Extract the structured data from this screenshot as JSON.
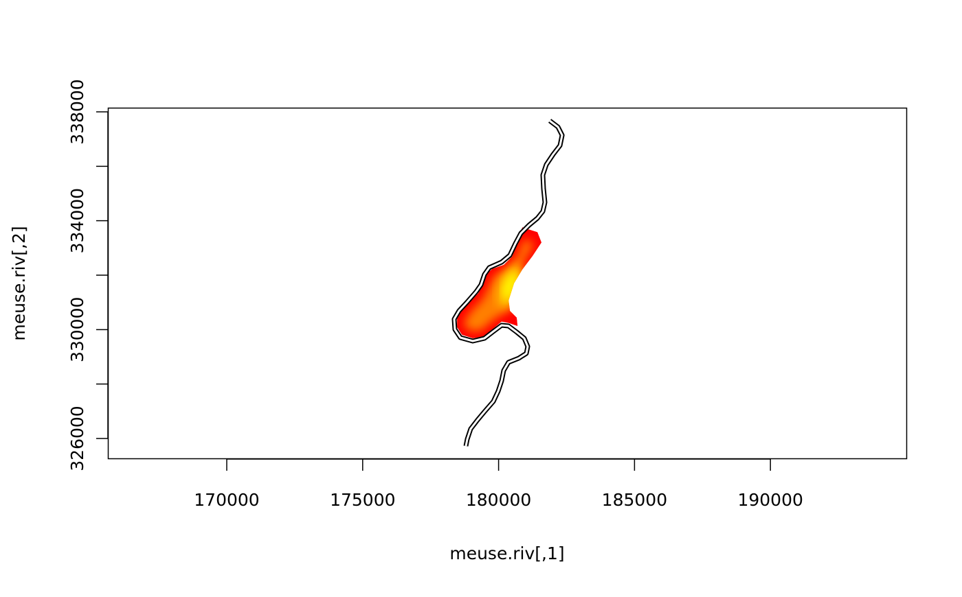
{
  "chart_data": {
    "type": "map",
    "title": "",
    "xlabel": "meuse.riv[,1]",
    "ylabel": "meuse.riv[,2]",
    "xlim": [
      165700,
      194600
    ],
    "ylim": [
      325250,
      338150
    ],
    "x_ticks": [
      170000,
      175000,
      180000,
      185000,
      190000
    ],
    "x_tick_labels": [
      "170000",
      "175000",
      "180000",
      "185000",
      "190000"
    ],
    "y_ticks": [
      326000,
      328000,
      330000,
      332000,
      334000,
      336000,
      338000
    ],
    "y_tick_labels": [
      "326000",
      "",
      "330000",
      "",
      "334000",
      "",
      "338000"
    ],
    "grid": false,
    "river_outline": [
      [
        181882,
        337672
      ],
      [
        182185,
        337445
      ],
      [
        182337,
        337143
      ],
      [
        182261,
        336765
      ],
      [
        182008,
        336437
      ],
      [
        181755,
        336059
      ],
      [
        181629,
        335681
      ],
      [
        181654,
        335176
      ],
      [
        181705,
        334672
      ],
      [
        181629,
        334345
      ],
      [
        181427,
        334093
      ],
      [
        181123,
        333840
      ],
      [
        180820,
        333538
      ],
      [
        180618,
        333160
      ],
      [
        180415,
        332731
      ],
      [
        180112,
        332479
      ],
      [
        179657,
        332277
      ],
      [
        179480,
        332025
      ],
      [
        179354,
        331647
      ],
      [
        179177,
        331395
      ],
      [
        178848,
        331017
      ],
      [
        178545,
        330689
      ],
      [
        178368,
        330387
      ],
      [
        178393,
        330009
      ],
      [
        178595,
        329706
      ],
      [
        179050,
        329580
      ],
      [
        179480,
        329681
      ],
      [
        179809,
        329933
      ],
      [
        180112,
        330160
      ],
      [
        180365,
        330135
      ],
      [
        180668,
        329908
      ],
      [
        180946,
        329681
      ],
      [
        181073,
        329379
      ],
      [
        181022,
        329126
      ],
      [
        180744,
        328950
      ],
      [
        180365,
        328798
      ],
      [
        180188,
        328496
      ],
      [
        180112,
        328118
      ],
      [
        179986,
        327740
      ],
      [
        179809,
        327362
      ],
      [
        179480,
        326984
      ],
      [
        179227,
        326681
      ],
      [
        178974,
        326354
      ],
      [
        178848,
        325975
      ],
      [
        178798,
        325723
      ]
    ],
    "raster_colors": [
      "#FF0000",
      "#FF4000",
      "#FF8000",
      "#FFBF00",
      "#FFFF00"
    ],
    "raster_outline": [
      [
        180870,
        333760
      ],
      [
        181430,
        333580
      ],
      [
        181580,
        333200
      ],
      [
        181250,
        332700
      ],
      [
        180870,
        332200
      ],
      [
        180570,
        331700
      ],
      [
        180370,
        331070
      ],
      [
        180420,
        330690
      ],
      [
        180670,
        330440
      ],
      [
        180700,
        330130
      ],
      [
        180370,
        330240
      ],
      [
        180110,
        330290
      ],
      [
        179810,
        330040
      ],
      [
        179480,
        329740
      ],
      [
        179050,
        329680
      ],
      [
        178650,
        329810
      ],
      [
        178470,
        330090
      ],
      [
        178470,
        330420
      ],
      [
        178650,
        330710
      ],
      [
        178950,
        331040
      ],
      [
        179250,
        331340
      ],
      [
        179430,
        331690
      ],
      [
        179560,
        332050
      ],
      [
        179760,
        332230
      ],
      [
        180190,
        332380
      ],
      [
        180490,
        332680
      ],
      [
        180670,
        333110
      ]
    ],
    "raster_mid": [
      [
        180950,
        333350
      ],
      [
        181300,
        333150
      ],
      [
        180950,
        332550
      ],
      [
        180650,
        331950
      ],
      [
        180480,
        331300
      ],
      [
        180500,
        330800
      ],
      [
        180200,
        330600
      ],
      [
        179800,
        330350
      ],
      [
        179350,
        329950
      ],
      [
        178900,
        329950
      ],
      [
        178700,
        330250
      ],
      [
        179000,
        330700
      ],
      [
        179400,
        331100
      ],
      [
        179650,
        331600
      ],
      [
        179850,
        332000
      ],
      [
        180350,
        332250
      ],
      [
        180700,
        332700
      ]
    ],
    "raster_core": [
      [
        180750,
        332450
      ],
      [
        180900,
        332000
      ],
      [
        180650,
        331500
      ],
      [
        180550,
        330950
      ],
      [
        180250,
        330800
      ],
      [
        180000,
        330900
      ],
      [
        179950,
        331350
      ],
      [
        180100,
        331850
      ],
      [
        180400,
        332250
      ]
    ]
  }
}
